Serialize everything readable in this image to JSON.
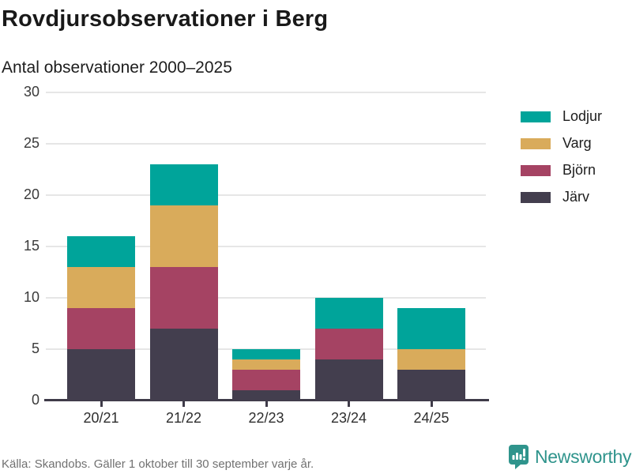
{
  "header": {
    "title": "Rovdjursobservationer i Berg",
    "subtitle": "Antal observationer 2000–2025"
  },
  "chart_data": {
    "type": "bar",
    "stacked": true,
    "title": "Rovdjursobservationer i Berg",
    "subtitle": "Antal observationer 2000–2025",
    "xlabel": "",
    "ylabel": "Antal observationer",
    "categories": [
      "20/21",
      "21/22",
      "22/23",
      "23/24",
      "24/25"
    ],
    "series": [
      {
        "name": "Lodjur",
        "color": "#00a49a",
        "values": [
          3,
          4,
          1,
          3,
          4
        ]
      },
      {
        "name": "Varg",
        "color": "#d9ab5b",
        "values": [
          4,
          6,
          1,
          0,
          2
        ]
      },
      {
        "name": "Björn",
        "color": "#a54363",
        "values": [
          4,
          6,
          2,
          3,
          0
        ]
      },
      {
        "name": "Järv",
        "color": "#433e4e",
        "values": [
          5,
          7,
          1,
          4,
          3
        ]
      }
    ],
    "stack_order_bottom_to_top": [
      "Järv",
      "Björn",
      "Varg",
      "Lodjur"
    ],
    "totals": [
      16,
      23,
      5,
      10,
      9
    ],
    "ylim": [
      0,
      30
    ],
    "yticks": [
      0,
      5,
      10,
      15,
      20,
      25,
      30
    ],
    "grid": true,
    "legend_position": "right"
  },
  "footer": {
    "source": "Källa: Skandobs. Gäller 1 oktober till 30 september varje år.",
    "brand": "Newsworthy"
  },
  "colors": {
    "accent_teal": "#00a49a",
    "gold": "#d9ab5b",
    "maroon": "#a54363",
    "dark_slate": "#433e4e",
    "axis": "#3f3b49",
    "gridline": "#e6e6e6",
    "brand_teal": "#2f948c"
  }
}
